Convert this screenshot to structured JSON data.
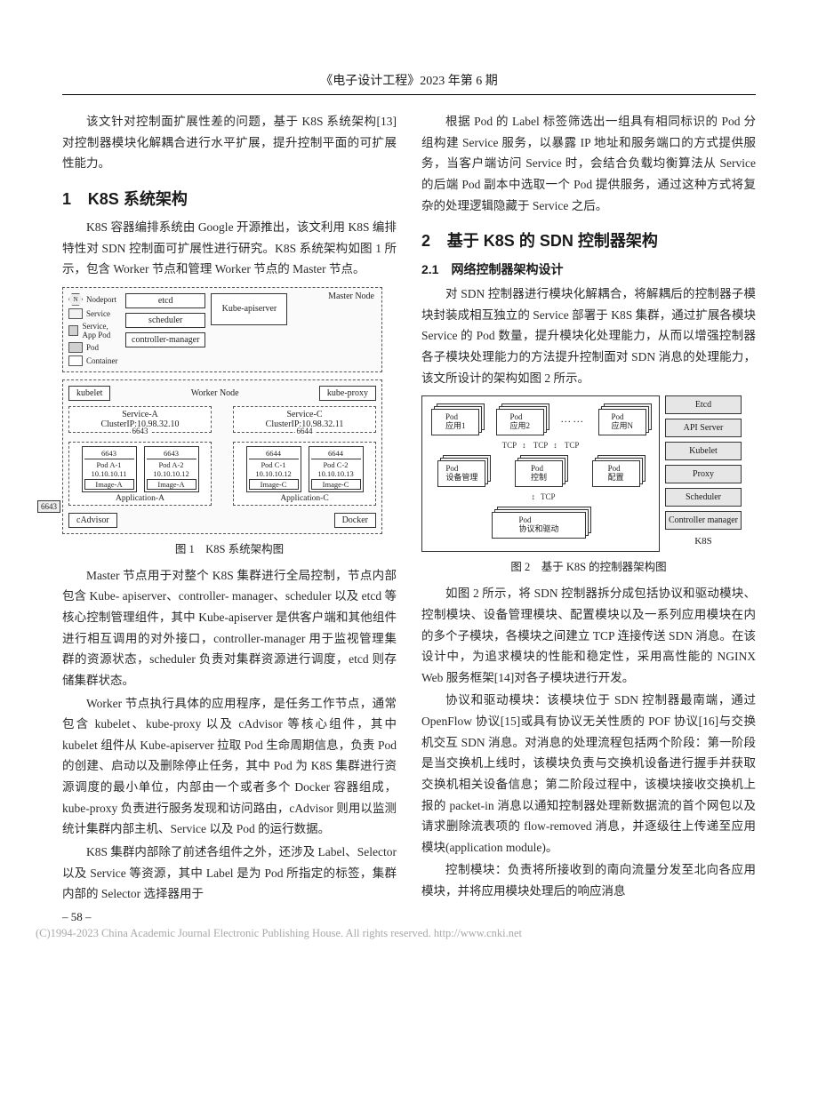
{
  "header": "《电子设计工程》2023 年第 6 期",
  "left": {
    "p_intro": "该文针对控制面扩展性差的问题，基于 K8S 系统架构[13]对控制器模块化解耦合进行水平扩展，提升控制平面的可扩展性能力。",
    "h1_num": "1",
    "h1_title": "K8S 系统架构",
    "p1": "K8S 容器编排系统由 Google 开源推出，该文利用 K8S 编排特性对 SDN 控制面可扩展性进行研究。K8S 系统架构如图 1 所示，包含 Worker 节点和管理 Worker 节点的 Master 节点。",
    "fig1_caption": "图 1　K8S 系统架构图",
    "p2": "Master 节点用于对整个 K8S 集群进行全局控制，节点内部包含 Kube- apiserver、controller- manager、scheduler 以及 etcd 等核心控制管理组件，其中 Kube-apiserver 是供客户端和其他组件进行相互调用的对外接口，controller-manager 用于监视管理集群的资源状态，scheduler 负责对集群资源进行调度，etcd 则存储集群状态。",
    "p3": "Worker 节点执行具体的应用程序，是任务工作节点，通常包含 kubelet、kube-proxy 以及 cAdvisor 等核心组件，其中 kubelet 组件从 Kube-apiserver 拉取 Pod 生命周期信息，负责 Pod 的创建、启动以及删除停止任务，其中 Pod 为 K8S 集群进行资源调度的最小单位，内部由一个或者多个 Docker 容器组成，kube-proxy 负责进行服务发现和访问路由，cAdvisor 则用以监测统计集群内部主机、Service 以及 Pod 的运行数据。",
    "p4": "K8S 集群内部除了前述各组件之外，还涉及 Label、Selector 以及 Service 等资源，其中 Label 是为 Pod 所指定的标签，集群内部的 Selector 选择器用于",
    "page_num": "– 58 –"
  },
  "right": {
    "p0": "根据 Pod 的 Label 标签筛选出一组具有相同标识的 Pod 分组构建 Service 服务，以暴露 IP 地址和服务端口的方式提供服务，当客户端访问 Service 时，会结合负载均衡算法从 Service 的后端 Pod 副本中选取一个 Pod 提供服务，通过这种方式将复杂的处理逻辑隐藏于 Service 之后。",
    "h1_num": "2",
    "h1_title": "基于 K8S 的 SDN 控制器架构",
    "h2_1": "2.1　网络控制器架构设计",
    "p1": "对 SDN 控制器进行模块化解耦合，将解耦后的控制器子模块封装成相互独立的 Service 部署于 K8S 集群，通过扩展各模块 Service 的 Pod 数量，提升模块化处理能力，从而以增强控制器各子模块处理能力的方法提升控制面对 SDN 消息的处理能力，该文所设计的架构如图 2 所示。",
    "fig2_caption": "图 2　基于 K8S 的控制器架构图",
    "p2": "如图 2 所示，将 SDN 控制器拆分成包括协议和驱动模块、控制模块、设备管理模块、配置模块以及一系列应用模块在内的多个子模块，各模块之间建立 TCP 连接传送 SDN 消息。在该设计中，为追求模块的性能和稳定性，采用高性能的 NGINX Web 服务框架[14]对各子模块进行开发。",
    "p3": "协议和驱动模块：该模块位于 SDN 控制器最南端，通过 OpenFlow 协议[15]或具有协议无关性质的 POF 协议[16]与交换机交互 SDN 消息。对消息的处理流程包括两个阶段：第一阶段是当交换机上线时，该模块负责与交换机设备进行握手并获取交换机相关设备信息；第二阶段过程中，该模块接收交换机上报的 packet-in 消息以通知控制器处理新数据流的首个网包以及请求删除流表项的 flow-removed 消息，并逐级往上传递至应用模块(application module)。",
    "p4": "控制模块：负责将所接收到的南向流量分发至北向各应用模块，并将应用模块处理后的响应消息"
  },
  "fig1": {
    "legend": {
      "n": "N",
      "np": "Nodeport",
      "svc": "Service",
      "app": "Service, App Pod",
      "pod": "Pod",
      "container": "Container"
    },
    "master": {
      "label": "Master Node",
      "etcd": "etcd",
      "scheduler": "scheduler",
      "cm": "controller-manager",
      "api": "Kube-apiserver"
    },
    "worker": {
      "kubelet": "kubelet",
      "label": "Worker Node",
      "kubeproxy": "kube-proxy",
      "svcA": {
        "name": "Service-A",
        "ip": "ClusterIP:10.98.32.10",
        "port": "6643"
      },
      "svcC": {
        "name": "Service-C",
        "ip": "ClusterIP:10.98.32.11",
        "port": "6644"
      },
      "appA": {
        "name": "Application-A",
        "pods": [
          {
            "port": "6643",
            "name": "Pod A-1",
            "ip": "10.10.10.11",
            "img": "Image-A"
          },
          {
            "port": "6643",
            "name": "Pod A-2",
            "ip": "10.10.10.12",
            "img": "Image-A"
          }
        ]
      },
      "appC": {
        "name": "Application-C",
        "pods": [
          {
            "port": "6644",
            "name": "Pod C-1",
            "ip": "10.10.10.12",
            "img": "Image-C"
          },
          {
            "port": "6644",
            "name": "Pod C-2",
            "ip": "10.10.10.13",
            "img": "Image-C"
          }
        ]
      },
      "cadvisor": "cAdvisor",
      "docker": "Docker",
      "leftport": "6643"
    }
  },
  "fig2": {
    "apps": [
      "Pod\n应用1",
      "Pod\n应用2",
      "Pod\n应用N"
    ],
    "dots": "……",
    "tcp": "TCP",
    "mid": [
      "Pod\n设备管理",
      "Pod\n控制",
      "Pod\n配置"
    ],
    "proto": "Pod\n协议和驱动",
    "side": [
      "Etcd",
      "API Server",
      "Kubelet",
      "Proxy",
      "Scheduler",
      "Controller manager"
    ],
    "k8s": "K8S"
  },
  "watermark": {
    "text": "(C)1994-2023 China Academic Journal Electronic Publishing House. All rights reserved.    ",
    "url": "http://www.cnki.net"
  }
}
